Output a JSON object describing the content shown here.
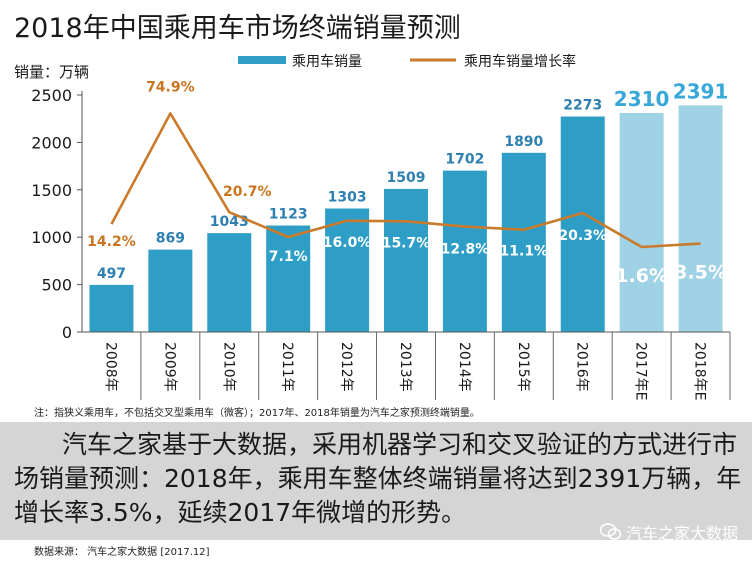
{
  "title": "2018年中国乘用车市场终端销量预测",
  "note": "注：指狭义乘用车，不包括交叉型乘用车（微客）；2017年、2018年销量为汽车之家预测终端销量。",
  "summary": "汽车之家基于大数据，采用机器学习和交叉验证的方式进行市场销量预测：2018年，乘用车整体终端销量将达到2391万辆，年增长率3.5%，延续2017年微增的形势。",
  "source": "数据来源：  汽车之家大数据  [2017.12]",
  "watermark": "汽车之家大数据",
  "colors": {
    "bar_actual": "#2e9ec7",
    "bar_forecast": "#9fd2e4",
    "line": "#c97a2a",
    "label_actual": "#2e80b0",
    "label_forecast": "#38a8d8",
    "growth_label": "#c87420"
  },
  "chart_data": {
    "type": "bar",
    "categories": [
      "2008年",
      "2009年",
      "2010年",
      "2011年",
      "2012年",
      "2013年",
      "2014年",
      "2015年",
      "2016年",
      "2017年E",
      "2018年E"
    ],
    "ylabel": "销量：万辆",
    "ylim": [
      0,
      2500
    ],
    "yticks": [
      0,
      500,
      1000,
      1500,
      2000,
      2500
    ],
    "legend_position": "top",
    "grid": false,
    "series": [
      {
        "name": "乘用车销量",
        "type": "bar",
        "values": [
          497,
          869,
          1043,
          1123,
          1303,
          1509,
          1702,
          1890,
          2273,
          2310,
          2391
        ],
        "forecast_from_index": 9
      },
      {
        "name": "乘用车销量增长率",
        "type": "line",
        "axis": "secondary",
        "values": [
          14.2,
          74.9,
          20.7,
          7.1,
          16.0,
          15.7,
          12.8,
          11.1,
          20.3,
          1.6,
          3.5
        ],
        "labels": [
          "14.2%",
          "74.9%",
          "20.7%",
          "7.1%",
          "16.0%",
          "15.7%",
          "12.8%",
          "11.1%",
          "20.3%",
          "1.6%",
          "3.5%"
        ],
        "secondary_ylim": [
          -45,
          85
        ]
      }
    ]
  }
}
